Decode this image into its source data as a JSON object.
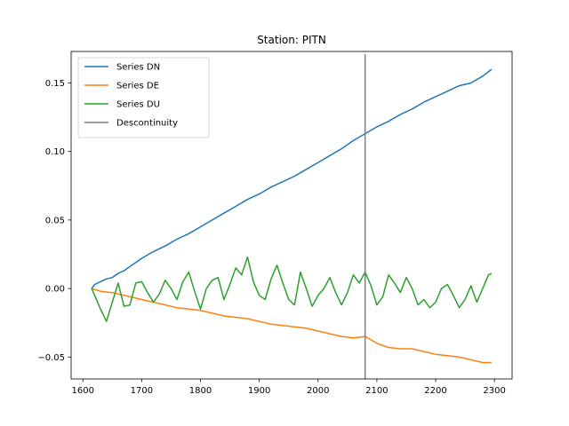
{
  "chart_data": {
    "type": "line",
    "title": "Station: PITN",
    "xlabel": "",
    "ylabel": "",
    "xlim": [
      1580,
      2330
    ],
    "ylim": [
      -0.066,
      0.173
    ],
    "xticks": [
      1600,
      1700,
      1800,
      1900,
      2000,
      2100,
      2200,
      2300
    ],
    "yticks": [
      -0.05,
      0.0,
      0.05,
      0.1,
      0.15
    ],
    "ytick_labels": [
      "−0.05",
      "0.00",
      "0.05",
      "0.10",
      "0.15"
    ],
    "grid": false,
    "legend_position": "top-left",
    "series": [
      {
        "name": "Series DN",
        "color": "#1f77b4",
        "x": [
          1615,
          1620,
          1630,
          1640,
          1650,
          1660,
          1670,
          1680,
          1690,
          1700,
          1720,
          1740,
          1760,
          1780,
          1800,
          1820,
          1840,
          1860,
          1880,
          1900,
          1920,
          1940,
          1960,
          1980,
          2000,
          2020,
          2040,
          2060,
          2080,
          2100,
          2120,
          2140,
          2160,
          2180,
          2200,
          2220,
          2240,
          2260,
          2280,
          2295
        ],
        "y": [
          0.0,
          0.003,
          0.005,
          0.007,
          0.008,
          0.011,
          0.013,
          0.016,
          0.019,
          0.022,
          0.027,
          0.031,
          0.036,
          0.04,
          0.045,
          0.05,
          0.055,
          0.06,
          0.065,
          0.069,
          0.074,
          0.078,
          0.082,
          0.087,
          0.092,
          0.097,
          0.102,
          0.108,
          0.113,
          0.118,
          0.122,
          0.127,
          0.131,
          0.136,
          0.14,
          0.144,
          0.148,
          0.15,
          0.155,
          0.16
        ]
      },
      {
        "name": "Series DE",
        "color": "#ff7f0e",
        "x": [
          1615,
          1630,
          1650,
          1670,
          1690,
          1700,
          1720,
          1740,
          1760,
          1780,
          1800,
          1820,
          1840,
          1860,
          1880,
          1900,
          1920,
          1940,
          1960,
          1980,
          2000,
          2020,
          2040,
          2060,
          2080,
          2100,
          2120,
          2140,
          2160,
          2180,
          2200,
          2220,
          2240,
          2260,
          2280,
          2295
        ],
        "y": [
          0.0,
          -0.002,
          -0.003,
          -0.005,
          -0.007,
          -0.008,
          -0.01,
          -0.012,
          -0.014,
          -0.015,
          -0.016,
          -0.018,
          -0.02,
          -0.021,
          -0.022,
          -0.024,
          -0.026,
          -0.027,
          -0.028,
          -0.029,
          -0.031,
          -0.033,
          -0.035,
          -0.036,
          -0.035,
          -0.04,
          -0.043,
          -0.044,
          -0.044,
          -0.046,
          -0.048,
          -0.049,
          -0.05,
          -0.052,
          -0.054,
          -0.054
        ]
      },
      {
        "name": "Series DU",
        "color": "#2ca02c",
        "x": [
          1615,
          1620,
          1630,
          1640,
          1650,
          1660,
          1670,
          1680,
          1690,
          1700,
          1710,
          1720,
          1730,
          1740,
          1750,
          1760,
          1770,
          1780,
          1790,
          1800,
          1810,
          1820,
          1830,
          1840,
          1850,
          1860,
          1870,
          1880,
          1890,
          1900,
          1910,
          1920,
          1930,
          1940,
          1950,
          1960,
          1970,
          1980,
          1990,
          2000,
          2010,
          2020,
          2030,
          2040,
          2050,
          2060,
          2070,
          2080,
          2090,
          2100,
          2110,
          2120,
          2130,
          2140,
          2150,
          2160,
          2170,
          2180,
          2190,
          2200,
          2210,
          2220,
          2230,
          2240,
          2250,
          2260,
          2270,
          2280,
          2290,
          2295
        ],
        "y": [
          0.0,
          -0.005,
          -0.015,
          -0.024,
          -0.01,
          0.004,
          -0.013,
          -0.012,
          0.004,
          0.005,
          -0.003,
          -0.01,
          -0.004,
          0.006,
          0.0,
          -0.008,
          0.005,
          0.012,
          -0.002,
          -0.015,
          0.0,
          0.006,
          0.008,
          -0.008,
          0.003,
          0.015,
          0.01,
          0.023,
          0.005,
          -0.005,
          -0.008,
          0.007,
          0.017,
          0.004,
          -0.008,
          -0.012,
          0.012,
          0.0,
          -0.013,
          -0.005,
          0.0,
          0.008,
          -0.003,
          -0.012,
          -0.003,
          0.01,
          0.004,
          0.012,
          0.002,
          -0.012,
          -0.006,
          0.01,
          0.004,
          -0.003,
          0.008,
          0.0,
          -0.012,
          -0.008,
          -0.014,
          -0.01,
          0.0,
          0.003,
          -0.005,
          -0.014,
          -0.008,
          0.002,
          -0.01,
          0.0,
          0.01,
          0.011
        ]
      }
    ],
    "vlines": [
      {
        "name": "Descontinuity",
        "color": "#7f7f7f",
        "x": 2080,
        "ymin": -0.066,
        "ymax": 0.171
      }
    ]
  }
}
